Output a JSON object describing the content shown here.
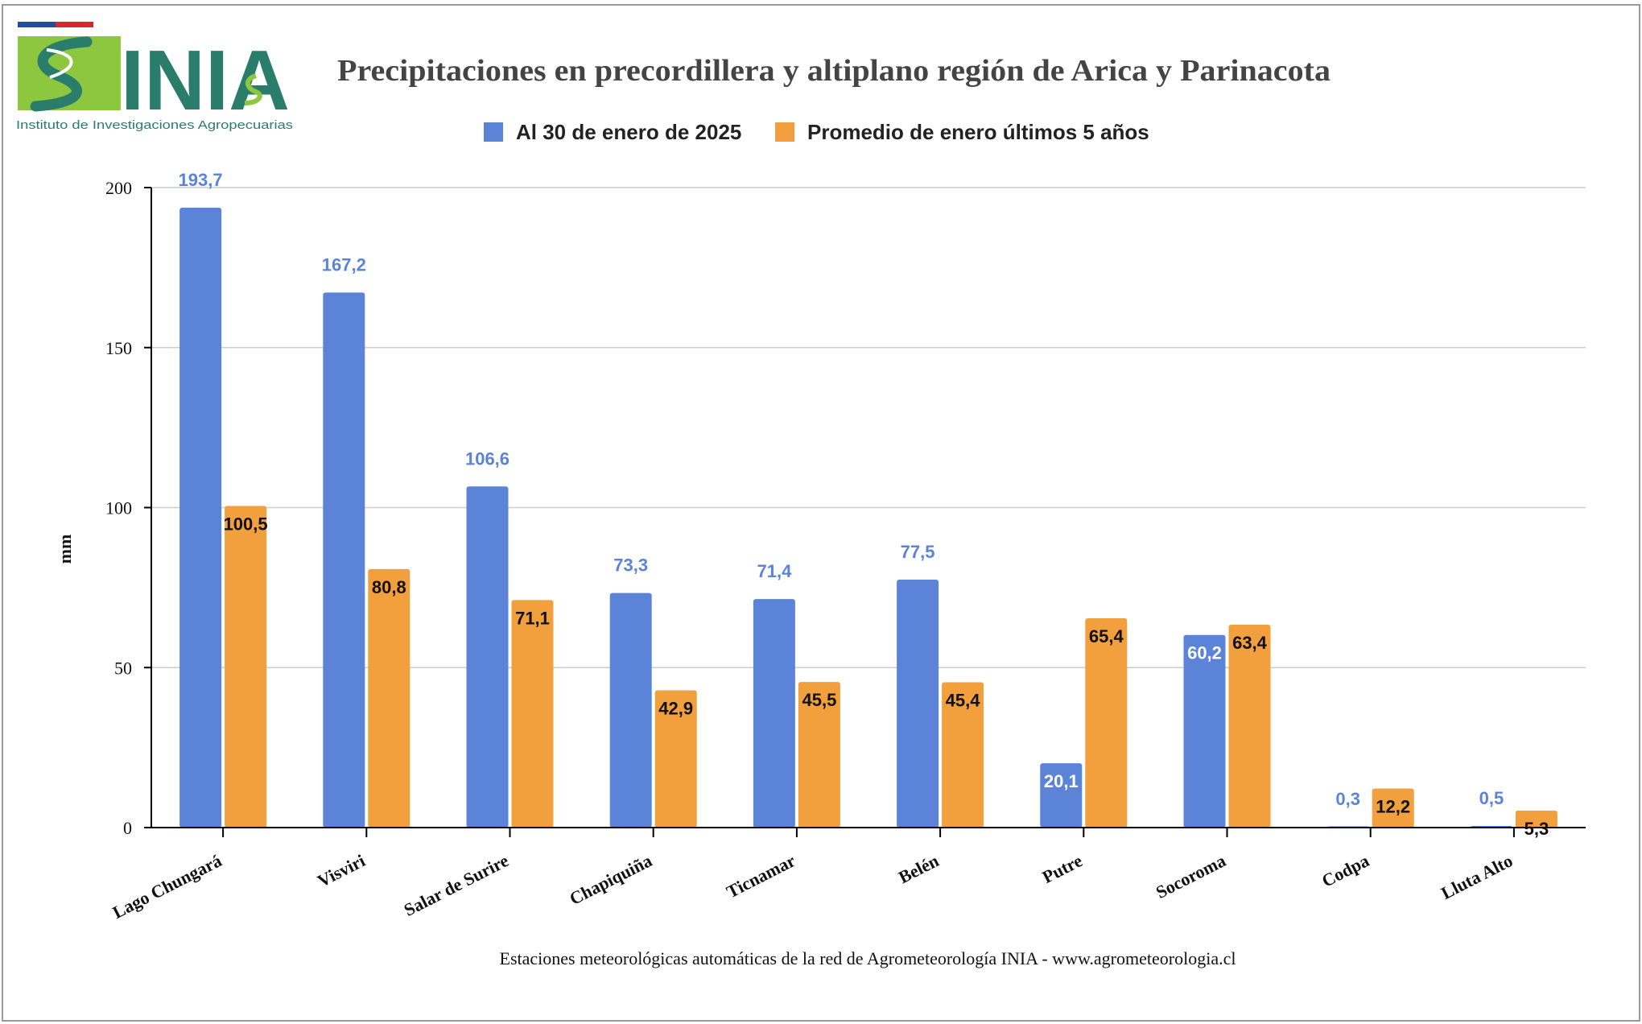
{
  "logo": {
    "wordmark": "INIA",
    "subtitle": "Instituto de Investigaciones Agropecuarias",
    "colors": {
      "green": "#8dc63f",
      "teal": "#2a7d6b",
      "flag_blue": "#1f4e9c",
      "flag_red": "#d7262c"
    }
  },
  "chart_data": {
    "type": "bar",
    "title": "Precipitaciones en precordillera y altiplano región de Arica y Parinacota",
    "xlabel": "Estaciones meteorológicas automáticas de la red de Agrometeorología INIA - www.agrometeorologia.cl",
    "ylabel": "mm",
    "ylim": [
      0,
      200
    ],
    "yticks": [
      0,
      50,
      100,
      150,
      200
    ],
    "grid": true,
    "legend_position": "top-center",
    "categories": [
      "Lago Chungará",
      "Visviri",
      "Salar de Surire",
      "Chapiquiña",
      "Ticnamar",
      "Belén",
      "Putre",
      "Socoroma",
      "Codpa",
      "Lluta Alto"
    ],
    "series": [
      {
        "name": "Al 30 de enero de 2025",
        "color": "#5b84d9",
        "values": [
          193.7,
          167.2,
          106.6,
          73.3,
          71.4,
          77.5,
          20.1,
          60.2,
          0.3,
          0.5
        ],
        "labels": [
          "193,7",
          "167,2",
          "106,6",
          "73,3",
          "71,4",
          "77,5",
          "20,1",
          "60,2",
          "0,3",
          "0,5"
        ]
      },
      {
        "name": "Promedio de enero últimos 5 años",
        "color": "#f2a03d",
        "values": [
          100.5,
          80.8,
          71.1,
          42.9,
          45.5,
          45.4,
          65.4,
          63.4,
          12.2,
          5.3
        ],
        "labels": [
          "100,5",
          "80,8",
          "71,1",
          "42,9",
          "45,5",
          "45,4",
          "65,4",
          "63,4",
          "12,2",
          "5,3"
        ]
      }
    ]
  }
}
